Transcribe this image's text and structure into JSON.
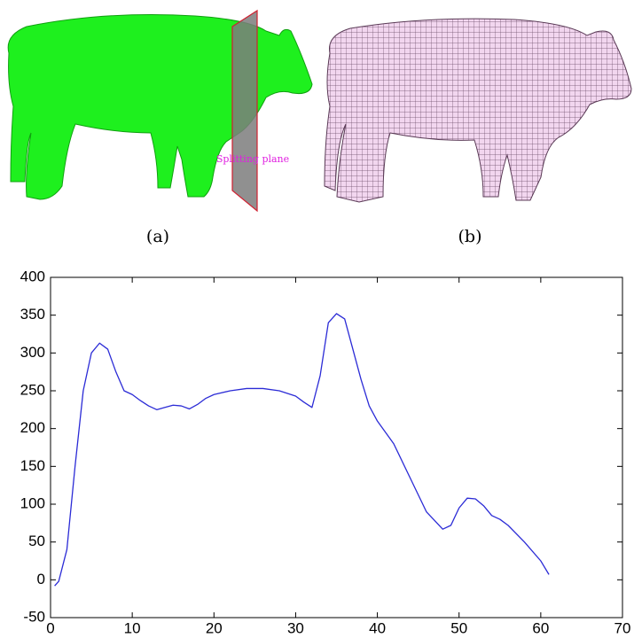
{
  "figure": {
    "annotation": "Splitting plane",
    "captions": [
      "(a)",
      "(b)"
    ]
  },
  "chart_data": {
    "type": "line",
    "color": "#2b2bd6",
    "x": [
      0.5,
      1,
      2,
      3,
      4,
      5,
      6,
      7,
      8,
      9,
      10,
      11,
      12,
      13,
      14,
      15,
      16,
      17,
      18,
      19,
      20,
      22,
      24,
      26,
      28,
      30,
      31,
      32,
      33,
      34,
      35,
      36,
      37,
      38,
      39,
      40,
      42,
      44,
      46,
      48,
      49,
      50,
      51,
      52,
      53,
      54,
      55,
      56,
      58,
      60,
      61
    ],
    "values": [
      -8,
      -2,
      40,
      150,
      250,
      300,
      313,
      305,
      275,
      250,
      245,
      237,
      230,
      225,
      228,
      231,
      230,
      226,
      232,
      240,
      245,
      250,
      253,
      253,
      250,
      243,
      235,
      228,
      270,
      340,
      352,
      345,
      305,
      265,
      230,
      210,
      180,
      135,
      90,
      67,
      72,
      95,
      108,
      107,
      98,
      85,
      80,
      72,
      50,
      25,
      7
    ],
    "xlim": [
      0,
      70
    ],
    "xticks": [
      0,
      10,
      20,
      30,
      40,
      50,
      60,
      70
    ],
    "ylim": [
      -50,
      400
    ],
    "yticks": [
      -50,
      0,
      50,
      100,
      150,
      200,
      250,
      300,
      350,
      400
    ]
  }
}
